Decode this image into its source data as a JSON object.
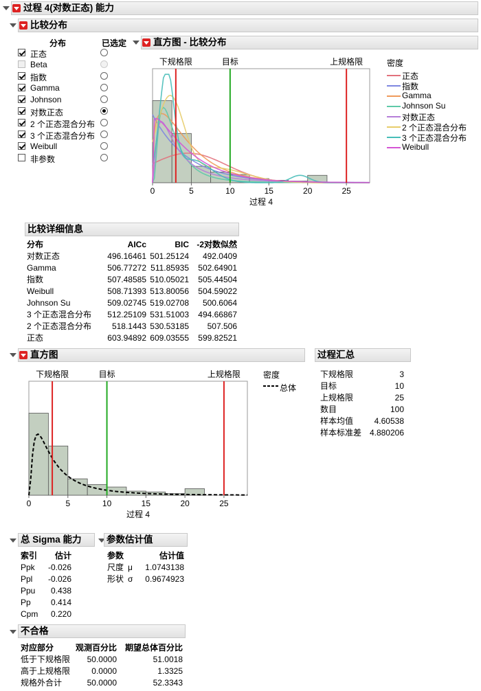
{
  "main_header": "过程 4(对数正态) 能力",
  "compare": {
    "header": "比较分布",
    "col_dist": "分布",
    "col_selected": "已选定",
    "items": [
      {
        "label": "正态",
        "checked": true,
        "selected": false,
        "disabled": false
      },
      {
        "label": "Beta",
        "checked": false,
        "selected": false,
        "disabled": true
      },
      {
        "label": "指数",
        "checked": true,
        "selected": false,
        "disabled": false
      },
      {
        "label": "Gamma",
        "checked": true,
        "selected": false,
        "disabled": false
      },
      {
        "label": "Johnson",
        "checked": true,
        "selected": false,
        "disabled": false
      },
      {
        "label": "对数正态",
        "checked": true,
        "selected": true,
        "disabled": false
      },
      {
        "label": "2 个正态混合分布",
        "checked": true,
        "selected": false,
        "disabled": false
      },
      {
        "label": "3 个正态混合分布",
        "checked": true,
        "selected": false,
        "disabled": false
      },
      {
        "label": "Weibull",
        "checked": true,
        "selected": false,
        "disabled": false
      },
      {
        "label": "非参数",
        "checked": false,
        "selected": false,
        "disabled": false
      }
    ]
  },
  "hist_compare": {
    "header": "直方图 - 比较分布",
    "lsl_label": "下规格限",
    "target_label": "目标",
    "usl_label": "上规格限",
    "xlabel": "过程 4",
    "legend_title": "密度",
    "legend": [
      {
        "name": "正态",
        "color": "#e2717c"
      },
      {
        "name": "指数",
        "color": "#7d86e0"
      },
      {
        "name": "Gamma",
        "color": "#ef9a5a"
      },
      {
        "name": "Johnson Su",
        "color": "#5ec9a8"
      },
      {
        "name": "对数正态",
        "color": "#b57ed8"
      },
      {
        "name": "2 个正态混合分布",
        "color": "#e7cc6a"
      },
      {
        "name": "3 个正态混合分布",
        "color": "#47bdb8"
      },
      {
        "name": "Weibull",
        "color": "#d455d4"
      }
    ]
  },
  "details": {
    "header": "比较详细信息",
    "columns": [
      "分布",
      "AICc",
      "BIC",
      "-2对数似然"
    ],
    "rows": [
      [
        "对数正态",
        "496.16461",
        "501.25124",
        "492.0409"
      ],
      [
        "Gamma",
        "506.77272",
        "511.85935",
        "502.64901"
      ],
      [
        "指数",
        "507.48585",
        "510.05021",
        "505.44504"
      ],
      [
        "Weibull",
        "508.71393",
        "513.80056",
        "504.59022"
      ],
      [
        "Johnson Su",
        "509.02745",
        "519.02708",
        "500.6064"
      ],
      [
        "3 个正态混合分布",
        "512.25109",
        "531.51003",
        "494.66867"
      ],
      [
        "2 个正态混合分布",
        "518.1443",
        "530.53185",
        "507.506"
      ],
      [
        "正态",
        "603.94892",
        "609.03555",
        "599.82521"
      ]
    ]
  },
  "hist": {
    "header": "直方图",
    "lsl_label": "下规格限",
    "target_label": "目标",
    "usl_label": "上规格限",
    "xlabel": "过程 4",
    "legend_title": "密度",
    "legend_entry": "总体"
  },
  "summary": {
    "header": "过程汇总",
    "rows": [
      [
        "下规格限",
        "3"
      ],
      [
        "目标",
        "10"
      ],
      [
        "上规格限",
        "25"
      ],
      [
        "数目",
        "100"
      ],
      [
        "样本均值",
        "4.60538"
      ],
      [
        "样本标准差",
        "4.880206"
      ]
    ]
  },
  "sigma": {
    "header": "总 Sigma 能力",
    "columns": [
      "索引",
      "估计"
    ],
    "rows": [
      [
        "Ppk",
        "-0.026"
      ],
      [
        "Ppl",
        "-0.026"
      ],
      [
        "Ppu",
        "0.438"
      ],
      [
        "Pp",
        "0.414"
      ],
      [
        "Cpm",
        "0.220"
      ]
    ]
  },
  "params": {
    "header": "参数估计值",
    "columns": [
      "参数",
      "",
      "估计值"
    ],
    "rows": [
      [
        "尺度",
        "μ",
        "1.0743138"
      ],
      [
        "形状",
        "σ",
        "0.9674923"
      ]
    ]
  },
  "nonconf": {
    "header": "不合格",
    "columns": [
      "对应部分",
      "观测百分比",
      "期望总体百分比"
    ],
    "rows": [
      [
        "低于下规格限",
        "50.0000",
        "51.0018"
      ],
      [
        "高于上规格限",
        "0.0000",
        "1.3325"
      ],
      [
        "规格外合计",
        "50.0000",
        "52.3343"
      ]
    ]
  },
  "chart_data": [
    {
      "type": "histogram",
      "title": "直方图 - 比较分布",
      "xlabel": "过程 4",
      "bin_edges": [
        0,
        2.5,
        5,
        7.5,
        10,
        12.5,
        15,
        17.5,
        20,
        22.5
      ],
      "bar_heights_relative": [
        1.0,
        0.6,
        0.2,
        0.13,
        0.1,
        0.05,
        0.03,
        0.02,
        0.09
      ],
      "spec_limits": {
        "LSL": 3,
        "Target": 10,
        "USL": 25
      },
      "xlim": [
        0,
        28
      ],
      "xticks": [
        0,
        5,
        10,
        15,
        20,
        25
      ],
      "density_series": [
        "正态",
        "指数",
        "Gamma",
        "Johnson Su",
        "对数正态",
        "2 个正态混合分布",
        "3 个正态混合分布",
        "Weibull"
      ]
    },
    {
      "type": "histogram",
      "title": "直方图",
      "xlabel": "过程 4",
      "bin_edges": [
        0,
        2.5,
        5,
        7.5,
        10,
        12.5,
        15,
        17.5,
        20,
        22.5
      ],
      "bar_heights_relative": [
        1.0,
        0.6,
        0.2,
        0.13,
        0.1,
        0.05,
        0.04,
        0.02,
        0.08
      ],
      "spec_limits": {
        "LSL": 3,
        "Target": 10,
        "USL": 25
      },
      "xlim": [
        0,
        28
      ],
      "xticks": [
        0,
        5,
        10,
        15,
        20,
        25
      ],
      "density_series": [
        "总体"
      ]
    }
  ]
}
